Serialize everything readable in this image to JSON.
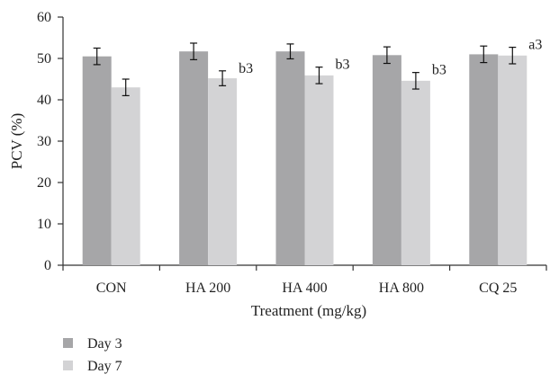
{
  "chart_data": {
    "type": "bar",
    "title": "",
    "xlabel": "Treatment (mg/kg)",
    "ylabel": "PCV (%)",
    "ylim": [
      0,
      60
    ],
    "yticks": [
      0,
      10,
      20,
      30,
      40,
      50,
      60
    ],
    "categories": [
      "CON",
      "HA 200",
      "HA 400",
      "HA 800",
      "CQ 25"
    ],
    "series": [
      {
        "name": "Day 3",
        "color": "#a6a6a8",
        "values": [
          50.5,
          51.7,
          51.7,
          50.8,
          51.0
        ],
        "errors": [
          2.0,
          2.0,
          1.8,
          2.0,
          2.0
        ],
        "labels": [
          "",
          "",
          "",
          "",
          ""
        ]
      },
      {
        "name": "Day 7",
        "color": "#d3d3d5",
        "values": [
          43.0,
          45.2,
          45.9,
          44.6,
          50.7
        ],
        "errors": [
          2.0,
          1.8,
          2.0,
          2.0,
          2.0
        ],
        "labels": [
          "",
          "b3",
          "b3",
          "b3",
          "a3"
        ]
      }
    ],
    "grid": false,
    "legend": "bottom-left"
  }
}
